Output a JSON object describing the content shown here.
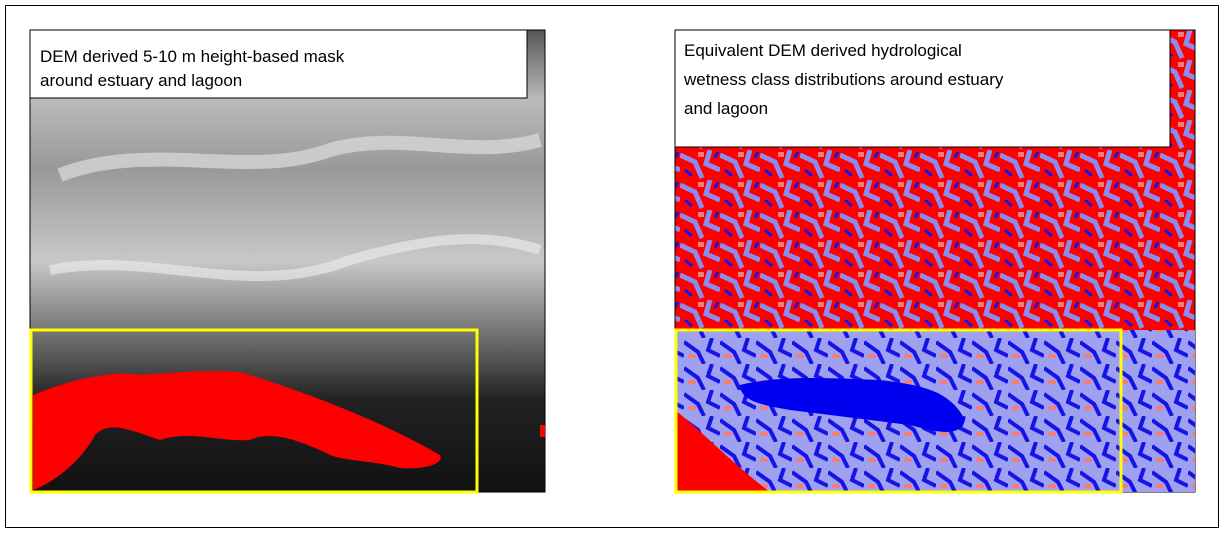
{
  "panels": [
    {
      "caption": [
        "DEM derived 5-10 m height-based  mask",
        "around estuary and lagoon"
      ]
    },
    {
      "caption": [
        "Equivalent DEM derived hydrological",
        "wetness class distributions around estuary",
        "and lagoon"
      ]
    }
  ]
}
